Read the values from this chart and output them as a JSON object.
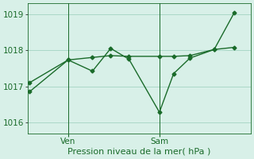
{
  "title": "",
  "xlabel": "Pression niveau de la mer( hPa )",
  "bg_color": "#d8f0e8",
  "line_color": "#1a6b2a",
  "ylim": [
    1015.7,
    1019.3
  ],
  "yticks": [
    1016,
    1017,
    1018,
    1019
  ],
  "xlim": [
    0,
    11
  ],
  "ven_x": 2.0,
  "sam_x": 6.5,
  "line1_x": [
    0.1,
    2.0,
    3.2,
    4.1,
    5.0,
    6.5,
    7.2,
    8.0,
    9.2,
    10.2
  ],
  "line1_y": [
    1016.85,
    1017.73,
    1017.42,
    1018.05,
    1017.75,
    1016.28,
    1017.35,
    1017.78,
    1018.02,
    1019.05
  ],
  "line2_x": [
    0.1,
    2.0,
    3.2,
    4.1,
    5.0,
    6.5,
    7.2,
    8.0,
    9.2,
    10.2
  ],
  "line2_y": [
    1017.1,
    1017.73,
    1017.8,
    1017.85,
    1017.83,
    1017.83,
    1017.83,
    1017.85,
    1018.02,
    1018.08
  ],
  "grid_color": "#aad8c8",
  "tick_color": "#1a6b2a",
  "label_fontsize": 8,
  "tick_fontsize": 7.5
}
